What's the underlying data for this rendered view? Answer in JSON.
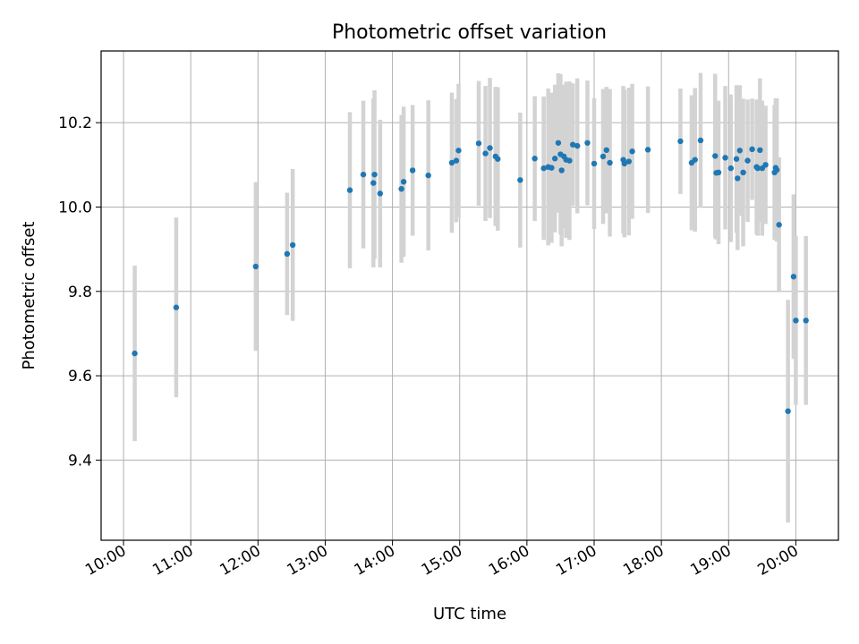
{
  "chart_data": {
    "type": "scatter",
    "title": "Photometric offset variation",
    "xlabel": "UTC time",
    "ylabel": "Photometric offset",
    "x_ticks": [
      "10:00",
      "11:00",
      "12:00",
      "13:00",
      "14:00",
      "15:00",
      "16:00",
      "17:00",
      "18:00",
      "19:00",
      "20:00"
    ],
    "y_ticks": [
      "9.4",
      "9.6",
      "9.8",
      "10.0",
      "10.2"
    ],
    "xlim": [
      "09:40",
      "20:38"
    ],
    "ylim": [
      9.21,
      10.37
    ],
    "grid": true,
    "marker_color": "#1f77b4",
    "errorbar_color": "#d3d3d3",
    "series": [
      {
        "x": [
          "10:10",
          "10:47",
          "11:58",
          "12:26",
          "12:31",
          "13:22",
          "13:34",
          "13:43",
          "13:44",
          "13:49",
          "14:08",
          "14:10",
          "14:18",
          "14:32",
          "14:53",
          "14:57",
          "14:59",
          "15:17",
          "15:23",
          "15:27",
          "15:32",
          "15:34",
          "15:54",
          "16:07",
          "16:15",
          "16:19",
          "16:22",
          "16:25",
          "16:28",
          "16:30",
          "16:31",
          "16:33",
          "16:35",
          "16:38",
          "16:41",
          "16:45",
          "16:54",
          "17:00",
          "17:08",
          "17:11",
          "17:14",
          "17:26",
          "17:27",
          "17:31",
          "17:34",
          "17:48",
          "18:17",
          "18:27",
          "18:30",
          "18:35",
          "18:48",
          "18:49",
          "18:51",
          "18:57",
          "19:02",
          "19:07",
          "19:08",
          "19:10",
          "19:13",
          "19:17",
          "19:21",
          "19:25",
          "19:26",
          "19:28",
          "19:30",
          "19:33",
          "19:41",
          "19:42",
          "19:43",
          "19:45",
          "19:53",
          "19:58",
          "20:00",
          "20:09"
        ],
        "y": [
          9.653,
          9.762,
          9.859,
          9.889,
          9.91,
          10.04,
          10.077,
          10.057,
          10.077,
          10.032,
          10.043,
          10.06,
          10.087,
          10.075,
          10.105,
          10.11,
          10.134,
          10.151,
          10.127,
          10.14,
          10.12,
          10.114,
          10.064,
          10.115,
          10.092,
          10.095,
          10.093,
          10.115,
          10.152,
          10.125,
          10.087,
          10.12,
          10.112,
          10.11,
          10.148,
          10.145,
          10.152,
          10.103,
          10.12,
          10.135,
          10.105,
          10.112,
          10.103,
          10.108,
          10.132,
          10.136,
          10.156,
          10.105,
          10.112,
          10.158,
          10.121,
          10.081,
          10.082,
          10.117,
          10.092,
          10.114,
          10.068,
          10.134,
          10.082,
          10.11,
          10.137,
          10.095,
          10.092,
          10.135,
          10.092,
          10.1,
          10.082,
          10.093,
          10.088,
          9.958,
          9.516,
          9.835,
          9.731,
          9.731
        ],
        "err": [
          0.208,
          0.213,
          0.2,
          0.145,
          0.18,
          0.185,
          0.175,
          0.2,
          0.2,
          0.175,
          0.175,
          0.178,
          0.155,
          0.178,
          0.166,
          0.146,
          0.158,
          0.148,
          0.16,
          0.166,
          0.165,
          0.17,
          0.16,
          0.148,
          0.17,
          0.186,
          0.178,
          0.175,
          0.165,
          0.19,
          0.18,
          0.17,
          0.185,
          0.188,
          0.145,
          0.16,
          0.148,
          0.155,
          0.16,
          0.15,
          0.175,
          0.175,
          0.175,
          0.175,
          0.16,
          0.15,
          0.125,
          0.16,
          0.17,
          0.16,
          0.195,
          0.158,
          0.17,
          0.17,
          0.175,
          0.175,
          0.17,
          0.155,
          0.175,
          0.145,
          0.12,
          0.16,
          0.16,
          0.17,
          0.16,
          0.14,
          0.16,
          0.165,
          0.17,
          0.16,
          0.264,
          0.195,
          0.2,
          0.2
        ]
      }
    ]
  }
}
